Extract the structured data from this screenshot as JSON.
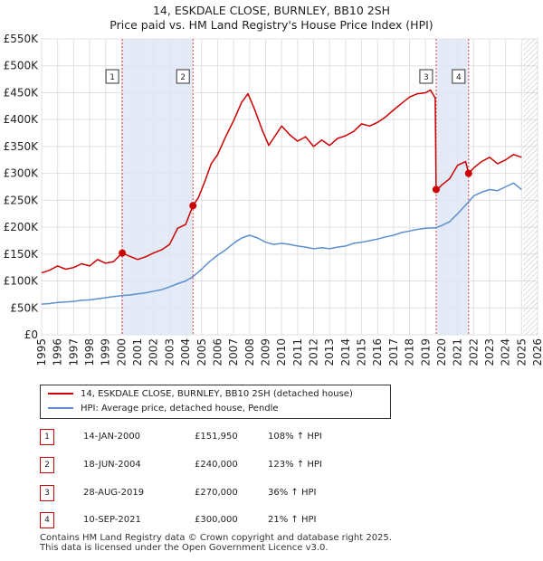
{
  "chart_data": {
    "type": "line",
    "title": "14, ESKDALE CLOSE, BURNLEY, BB10 2SH",
    "subtitle": "Price paid vs. HM Land Registry's House Price Index (HPI)",
    "xlabel": "",
    "ylabel": "",
    "xlim": [
      1995,
      2026
    ],
    "ylim": [
      0,
      550000
    ],
    "y_tick_labels": [
      "£0",
      "£50K",
      "£100K",
      "£150K",
      "£200K",
      "£250K",
      "£300K",
      "£350K",
      "£400K",
      "£450K",
      "£500K",
      "£550K"
    ],
    "x_tick_labels": [
      "1995",
      "1996",
      "1997",
      "1998",
      "1999",
      "2000",
      "2001",
      "2002",
      "2003",
      "2004",
      "2005",
      "2006",
      "2007",
      "2008",
      "2009",
      "2010",
      "2011",
      "2012",
      "2013",
      "2014",
      "2015",
      "2016",
      "2017",
      "2018",
      "2019",
      "2020",
      "2021",
      "2022",
      "2023",
      "2024",
      "2025",
      "2026"
    ],
    "grid": true,
    "series": [
      {
        "name": "14, ESKDALE CLOSE, BURNLEY, BB10 2SH (detached house)",
        "color": "#cc0000",
        "points": [
          [
            1995.0,
            115000
          ],
          [
            1995.5,
            120000
          ],
          [
            1996.0,
            128000
          ],
          [
            1996.5,
            122000
          ],
          [
            1997.0,
            125000
          ],
          [
            1997.5,
            132000
          ],
          [
            1998.0,
            128000
          ],
          [
            1998.5,
            140000
          ],
          [
            1999.0,
            133000
          ],
          [
            1999.5,
            136000
          ],
          [
            2000.04,
            151950
          ],
          [
            2000.5,
            146000
          ],
          [
            2001.0,
            140000
          ],
          [
            2001.5,
            145000
          ],
          [
            2002.0,
            152000
          ],
          [
            2002.5,
            158000
          ],
          [
            2003.0,
            168000
          ],
          [
            2003.5,
            198000
          ],
          [
            2004.0,
            205000
          ],
          [
            2004.46,
            240000
          ],
          [
            2004.8,
            255000
          ],
          [
            2005.2,
            285000
          ],
          [
            2005.6,
            318000
          ],
          [
            2006.0,
            335000
          ],
          [
            2006.5,
            368000
          ],
          [
            2007.0,
            398000
          ],
          [
            2007.5,
            432000
          ],
          [
            2007.9,
            448000
          ],
          [
            2008.3,
            420000
          ],
          [
            2008.8,
            380000
          ],
          [
            2009.2,
            352000
          ],
          [
            2009.6,
            370000
          ],
          [
            2010.0,
            388000
          ],
          [
            2010.5,
            372000
          ],
          [
            2011.0,
            360000
          ],
          [
            2011.5,
            368000
          ],
          [
            2012.0,
            350000
          ],
          [
            2012.5,
            362000
          ],
          [
            2013.0,
            352000
          ],
          [
            2013.5,
            365000
          ],
          [
            2014.0,
            370000
          ],
          [
            2014.5,
            378000
          ],
          [
            2015.0,
            392000
          ],
          [
            2015.5,
            388000
          ],
          [
            2016.0,
            395000
          ],
          [
            2016.5,
            405000
          ],
          [
            2017.0,
            418000
          ],
          [
            2017.5,
            430000
          ],
          [
            2018.0,
            442000
          ],
          [
            2018.5,
            448000
          ],
          [
            2019.0,
            450000
          ],
          [
            2019.3,
            455000
          ],
          [
            2019.6,
            440000
          ],
          [
            2019.66,
            270000
          ],
          [
            2019.8,
            272000
          ],
          [
            2020.0,
            278000
          ],
          [
            2020.5,
            290000
          ],
          [
            2021.0,
            315000
          ],
          [
            2021.5,
            322000
          ],
          [
            2021.69,
            300000
          ],
          [
            2022.0,
            310000
          ],
          [
            2022.5,
            322000
          ],
          [
            2023.0,
            330000
          ],
          [
            2023.5,
            318000
          ],
          [
            2024.0,
            325000
          ],
          [
            2024.5,
            335000
          ],
          [
            2025.0,
            330000
          ]
        ]
      },
      {
        "name": "HPI: Average price, detached house, Pendle",
        "color": "#5b8fd0",
        "points": [
          [
            1995.0,
            57000
          ],
          [
            1995.5,
            58000
          ],
          [
            1996.0,
            60000
          ],
          [
            1996.5,
            61000
          ],
          [
            1997.0,
            62000
          ],
          [
            1997.5,
            64000
          ],
          [
            1998.0,
            65000
          ],
          [
            1998.5,
            67000
          ],
          [
            1999.0,
            69000
          ],
          [
            1999.5,
            71000
          ],
          [
            2000.04,
            73000
          ],
          [
            2000.5,
            74000
          ],
          [
            2001.0,
            76000
          ],
          [
            2001.5,
            78000
          ],
          [
            2002.0,
            81000
          ],
          [
            2002.5,
            84000
          ],
          [
            2003.0,
            89000
          ],
          [
            2003.5,
            95000
          ],
          [
            2004.0,
            100000
          ],
          [
            2004.46,
            108000
          ],
          [
            2005.0,
            122000
          ],
          [
            2005.5,
            136000
          ],
          [
            2006.0,
            148000
          ],
          [
            2006.5,
            158000
          ],
          [
            2007.0,
            170000
          ],
          [
            2007.5,
            180000
          ],
          [
            2008.0,
            185000
          ],
          [
            2008.5,
            180000
          ],
          [
            2009.0,
            172000
          ],
          [
            2009.5,
            168000
          ],
          [
            2010.0,
            170000
          ],
          [
            2010.5,
            168000
          ],
          [
            2011.0,
            165000
          ],
          [
            2011.5,
            163000
          ],
          [
            2012.0,
            160000
          ],
          [
            2012.5,
            162000
          ],
          [
            2013.0,
            160000
          ],
          [
            2013.5,
            163000
          ],
          [
            2014.0,
            165000
          ],
          [
            2014.5,
            170000
          ],
          [
            2015.0,
            172000
          ],
          [
            2015.5,
            175000
          ],
          [
            2016.0,
            178000
          ],
          [
            2016.5,
            182000
          ],
          [
            2017.0,
            185000
          ],
          [
            2017.5,
            190000
          ],
          [
            2018.0,
            193000
          ],
          [
            2018.5,
            196000
          ],
          [
            2019.0,
            198000
          ],
          [
            2019.66,
            199000
          ],
          [
            2020.0,
            203000
          ],
          [
            2020.5,
            210000
          ],
          [
            2021.0,
            225000
          ],
          [
            2021.69,
            247000
          ],
          [
            2022.0,
            258000
          ],
          [
            2022.5,
            265000
          ],
          [
            2023.0,
            270000
          ],
          [
            2023.5,
            268000
          ],
          [
            2024.0,
            275000
          ],
          [
            2024.5,
            282000
          ],
          [
            2025.0,
            270000
          ]
        ]
      }
    ],
    "sales": [
      {
        "label": "1",
        "x": 2000.04,
        "value": 151950,
        "date": "14-JAN-2000",
        "price": "£151,950",
        "hpi_change": "108% ↑ HPI"
      },
      {
        "label": "2",
        "x": 2004.46,
        "value": 240000,
        "date": "18-JUN-2004",
        "price": "£240,000",
        "hpi_change": "123% ↑ HPI"
      },
      {
        "label": "3",
        "x": 2019.66,
        "value": 270000,
        "date": "28-AUG-2019",
        "price": "£270,000",
        "hpi_change": "36% ↑ HPI"
      },
      {
        "label": "4",
        "x": 2021.69,
        "value": 300000,
        "date": "10-SEP-2021",
        "price": "£300,000",
        "hpi_change": "21% ↑ HPI"
      }
    ],
    "shaded_spans": [
      [
        2000.04,
        2004.46
      ],
      [
        2019.66,
        2021.69
      ]
    ],
    "forecast_from": 2025.1
  },
  "legend": {
    "property_label": "14, ESKDALE CLOSE, BURNLEY, BB10 2SH (detached house)",
    "hpi_label": "HPI: Average price, detached house, Pendle"
  },
  "footer": {
    "line1": "Contains HM Land Registry data © Crown copyright and database right 2025.",
    "line2": "This data is licensed under the Open Government Licence v3.0."
  }
}
